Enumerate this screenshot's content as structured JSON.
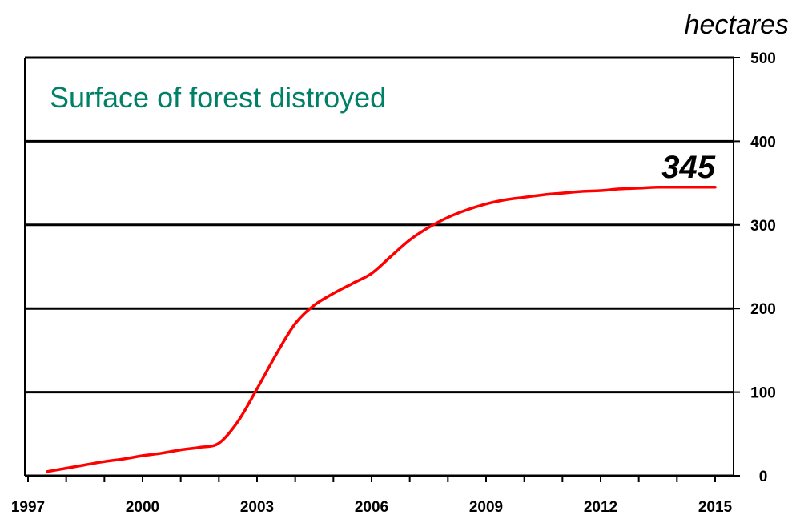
{
  "chart_data": {
    "type": "line",
    "title": "Surface of forest distroyed",
    "unit_label": "hectares",
    "end_label": "345",
    "xlabel": "",
    "ylabel": "",
    "x_ticks": [
      "1997",
      "2000",
      "2003",
      "2006",
      "2009",
      "2012",
      "2015"
    ],
    "y_ticks": [
      "0",
      "100",
      "200",
      "300",
      "400",
      "500"
    ],
    "xlim": [
      1997,
      2015.5
    ],
    "ylim": [
      0,
      500
    ],
    "y_axis_position": "right",
    "grid": "horizontal",
    "series": [
      {
        "color": "#ff0000",
        "x": [
          1997.5,
          1998.0,
          1998.5,
          1999.0,
          1999.5,
          2000.0,
          2000.5,
          2001.0,
          2001.5,
          2002.0,
          2002.5,
          2003.0,
          2003.5,
          2004.0,
          2004.5,
          2005.0,
          2005.5,
          2006.0,
          2006.5,
          2007.0,
          2007.5,
          2008.0,
          2008.5,
          2009.0,
          2009.5,
          2010.0,
          2010.5,
          2011.0,
          2011.5,
          2012.0,
          2012.5,
          2013.0,
          2013.5,
          2014.0,
          2014.5,
          2015.0
        ],
        "values": [
          5,
          9,
          13,
          17,
          20,
          24,
          27,
          31,
          34,
          39,
          65,
          104,
          145,
          182,
          204,
          218,
          230,
          242,
          262,
          282,
          297,
          309,
          318,
          325,
          330,
          333,
          336,
          338,
          340,
          341,
          343,
          344,
          345,
          345,
          345,
          345
        ]
      }
    ],
    "title_color": "#008066",
    "line_color": "#ff0000",
    "grid_color": "#000000"
  }
}
